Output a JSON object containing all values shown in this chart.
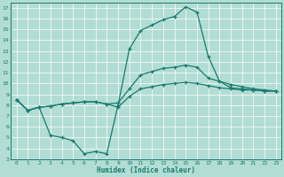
{
  "xlabel": "Humidex (Indice chaleur)",
  "xlim": [
    -0.5,
    23.5
  ],
  "ylim": [
    3,
    17.5
  ],
  "xticks": [
    0,
    1,
    2,
    3,
    4,
    5,
    6,
    7,
    8,
    9,
    10,
    11,
    12,
    13,
    14,
    15,
    16,
    17,
    18,
    19,
    20,
    21,
    22,
    23
  ],
  "yticks": [
    3,
    4,
    5,
    6,
    7,
    8,
    9,
    10,
    11,
    12,
    13,
    14,
    15,
    16,
    17
  ],
  "bg_color": "#b2ddd4",
  "grid_color": "#8bbdb6",
  "line_color": "#1a7a6e",
  "curve_big_x": [
    0,
    1,
    2,
    3,
    4,
    5,
    6,
    7,
    8,
    9,
    10,
    11,
    12,
    13,
    14,
    15,
    16,
    17,
    18,
    19,
    20,
    21,
    22,
    23
  ],
  "curve_big_y": [
    8.5,
    7.5,
    7.8,
    5.2,
    5.0,
    4.7,
    3.5,
    3.7,
    3.5,
    8.0,
    13.2,
    14.9,
    15.4,
    15.9,
    16.2,
    17.1,
    16.6,
    12.5,
    10.2,
    9.6,
    9.5,
    9.4,
    9.3,
    9.3
  ],
  "curve_mid_x": [
    0,
    1,
    2,
    3,
    4,
    5,
    6,
    7,
    8,
    9,
    10,
    11,
    12,
    13,
    14,
    15,
    16,
    17,
    18,
    19,
    20,
    21,
    22,
    23
  ],
  "curve_mid_y": [
    8.5,
    7.5,
    7.8,
    7.9,
    8.1,
    8.2,
    8.3,
    8.3,
    8.1,
    8.2,
    9.5,
    10.8,
    11.1,
    11.4,
    11.5,
    11.7,
    11.5,
    10.5,
    10.2,
    9.9,
    9.7,
    9.5,
    9.4,
    9.3
  ],
  "curve_low_x": [
    0,
    1,
    2,
    3,
    4,
    5,
    6,
    7,
    8,
    9,
    10,
    11,
    12,
    13,
    14,
    15,
    16,
    17,
    18,
    19,
    20,
    21,
    22,
    23
  ],
  "curve_low_y": [
    8.5,
    7.5,
    7.8,
    7.9,
    8.1,
    8.2,
    8.3,
    8.3,
    8.1,
    7.8,
    8.8,
    9.5,
    9.7,
    9.9,
    10.0,
    10.1,
    10.0,
    9.8,
    9.6,
    9.5,
    9.4,
    9.4,
    9.3,
    9.3
  ]
}
